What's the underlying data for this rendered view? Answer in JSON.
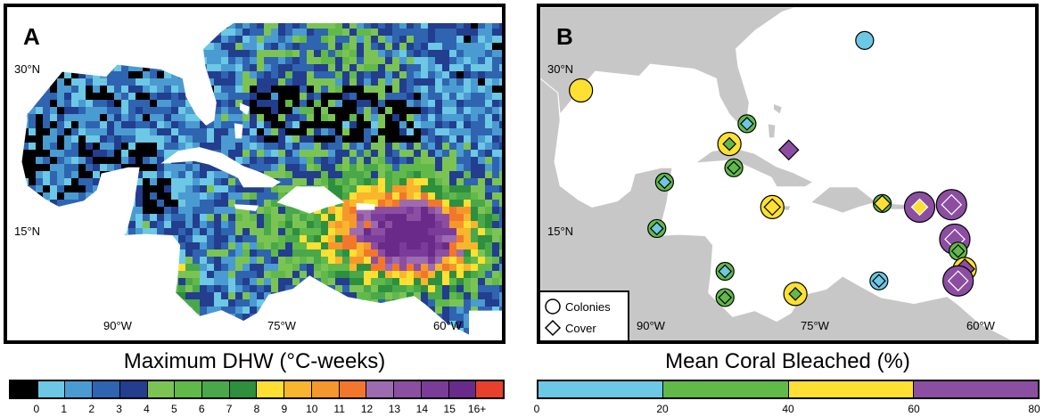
{
  "panelA": {
    "label": "A",
    "lat_labels": [
      "30°N",
      "15°N"
    ],
    "lon_labels": [
      "90°W",
      "75°W",
      "60°W"
    ],
    "colorbar": {
      "title": "Maximum DHW (°C-weeks)",
      "colors": [
        "#000000",
        "#6cc8e4",
        "#4a9bd1",
        "#2f64b0",
        "#233d8f",
        "#7bc454",
        "#61b94a",
        "#48a84a",
        "#2e8f3e",
        "#fde032",
        "#f9b52d",
        "#f6972c",
        "#f2772d",
        "#9d6bb0",
        "#8c4ea1",
        "#7a3c98",
        "#6a2a8a",
        "#e8402d"
      ],
      "tick_labels": [
        "0",
        "1",
        "2",
        "3",
        "4",
        "5",
        "6",
        "7",
        "8",
        "9",
        "10",
        "11",
        "12",
        "13",
        "14",
        "15",
        "16+"
      ]
    }
  },
  "panelB": {
    "label": "B",
    "lat_labels": [
      "30°N",
      "15°N"
    ],
    "lon_labels": [
      "90°W",
      "75°W",
      "60°W"
    ],
    "legend": {
      "colonies": "Colonies",
      "cover": "Cover"
    },
    "colorbar": {
      "title": "Mean Coral Bleached (%)",
      "colors": [
        "#6cc8e4",
        "#61b94a",
        "#fde032",
        "#8c4ea1"
      ],
      "tick_labels": [
        "0",
        "20",
        "40",
        "60",
        "80"
      ]
    },
    "sites": [
      {
        "lon": -69.5,
        "lat": 32.2,
        "colonies": "#6cc8e4",
        "cover": null
      },
      {
        "lon": -95.3,
        "lat": 28.0,
        "colonies": "#fde032",
        "cover": null
      },
      {
        "lon": -80.2,
        "lat": 25.2,
        "colonies": "#61b94a",
        "cover": "#6cc8e4"
      },
      {
        "lon": -81.8,
        "lat": 23.5,
        "colonies": "#fde032",
        "cover": "#61b94a"
      },
      {
        "lon": -76.4,
        "lat": 23.0,
        "colonies": null,
        "cover": "#8c4ea1"
      },
      {
        "lon": -81.4,
        "lat": 21.5,
        "colonies": "#61b94a",
        "cover": "#61b94a"
      },
      {
        "lon": -87.7,
        "lat": 20.3,
        "colonies": "#61b94a",
        "cover": "#6cc8e4"
      },
      {
        "lon": -77.9,
        "lat": 18.2,
        "colonies": "#fde032",
        "cover": "#fde032"
      },
      {
        "lon": -67.9,
        "lat": 18.5,
        "colonies": "#61b94a",
        "cover": "#fde032"
      },
      {
        "lon": -64.5,
        "lat": 18.2,
        "colonies": "#8c4ea1",
        "cover": "#fde032"
      },
      {
        "lon": -61.6,
        "lat": 18.4,
        "colonies": "#8c4ea1",
        "cover": "#8c4ea1"
      },
      {
        "lon": -88.4,
        "lat": 16.4,
        "colonies": "#61b94a",
        "cover": "#6cc8e4"
      },
      {
        "lon": -61.3,
        "lat": 15.5,
        "colonies": "#8c4ea1",
        "cover": "#8c4ea1"
      },
      {
        "lon": -61.0,
        "lat": 14.5,
        "colonies": "#61b94a",
        "cover": "#61b94a"
      },
      {
        "lon": -60.4,
        "lat": 13.0,
        "colonies": "#fde032",
        "cover": "#8c4ea1"
      },
      {
        "lon": -61.0,
        "lat": 12.0,
        "colonies": "#8c4ea1",
        "cover": "#8c4ea1"
      },
      {
        "lon": -82.2,
        "lat": 12.8,
        "colonies": "#61b94a",
        "cover": "#6cc8e4"
      },
      {
        "lon": -68.2,
        "lat": 12.0,
        "colonies": "#6cc8e4",
        "cover": "#6cc8e4"
      },
      {
        "lon": -75.8,
        "lat": 10.9,
        "colonies": "#fde032",
        "cover": "#61b94a"
      },
      {
        "lon": -82.2,
        "lat": 10.6,
        "colonies": "#61b94a",
        "cover": "#61b94a"
      }
    ]
  }
}
